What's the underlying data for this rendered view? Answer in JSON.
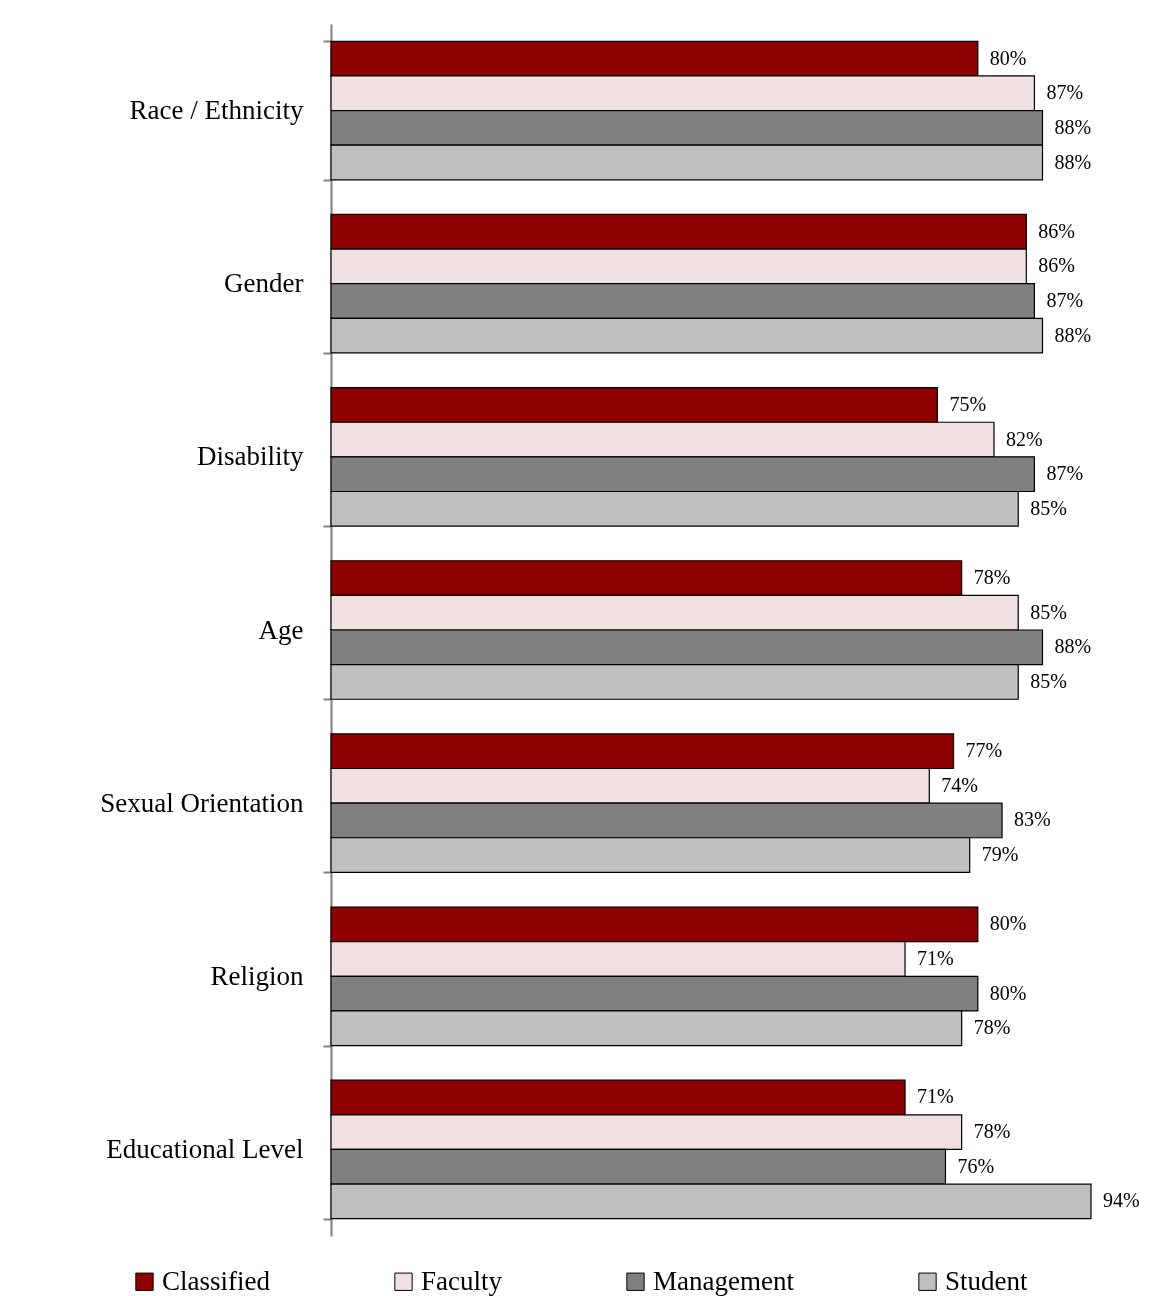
{
  "chart_data": {
    "type": "bar",
    "orientation": "horizontal",
    "tick_labels": "y",
    "legend": "bottom",
    "categories": [
      "Race / Ethnicity",
      "Gender",
      "Disability",
      "Age",
      "Sexual Orientation",
      "Religion",
      "Educational Level"
    ],
    "series": [
      {
        "name": "Classified",
        "color": "#8f0000",
        "values": [
          80,
          86,
          75,
          78,
          77,
          80,
          71
        ],
        "value_labels": [
          "80%",
          "86%",
          "75%",
          "78%",
          "77%",
          "80%",
          "71%"
        ]
      },
      {
        "name": "Faculty",
        "color": "#f0e0e0",
        "values": [
          87,
          86,
          82,
          85,
          74,
          71,
          78
        ],
        "value_labels": [
          "87%",
          "86%",
          "82%",
          "85%",
          "74%",
          "71%",
          "78%"
        ]
      },
      {
        "name": "Management",
        "color": "#808080",
        "values": [
          88,
          87,
          87,
          88,
          83,
          80,
          76
        ],
        "value_labels": [
          "88%",
          "87%",
          "87%",
          "88%",
          "83%",
          "80%",
          "76%"
        ]
      },
      {
        "name": "Student",
        "color": "#c0c0c0",
        "values": [
          88,
          88,
          85,
          85,
          79,
          78,
          94
        ],
        "value_labels": [
          "88%",
          "88%",
          "85%",
          "85%",
          "79%",
          "78%",
          "94%"
        ]
      }
    ]
  }
}
